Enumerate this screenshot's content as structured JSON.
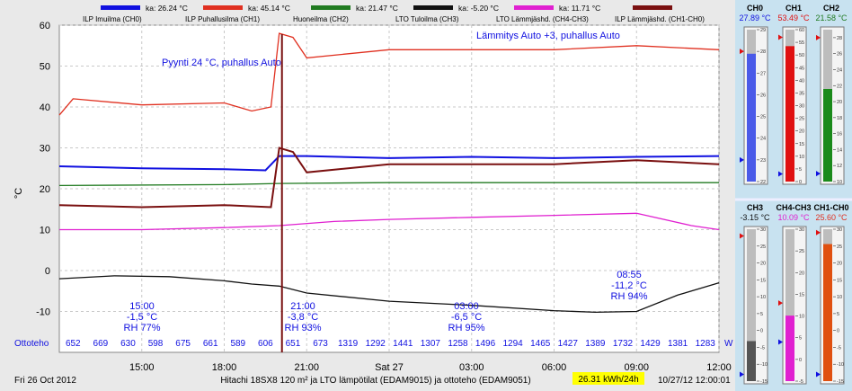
{
  "legend": [
    {
      "ka": "ka: 26.24 °C",
      "name": "ILP Imuilma (CH0)",
      "color": "#1010e0"
    },
    {
      "ka": "ka: 45.14 °C",
      "name": "ILP Puhallusilma (CH1)",
      "color": "#e03020"
    },
    {
      "ka": "ka: 21.47 °C",
      "name": "Huoneilma (CH2)",
      "color": "#207a20"
    },
    {
      "ka": "ka: -5.20 °C",
      "name": "LTO Tuloilma (CH3)",
      "color": "#111111"
    },
    {
      "ka": "ka: 11.71 °C",
      "name": "LTO Lämmjäshd. (CH4-CH3)",
      "color": "#e020d0"
    },
    {
      "ka": "",
      "name": "ILP Lämmjäshd. (CH1-CH0)",
      "color": "#7a1010"
    }
  ],
  "notes": {
    "pyynti": "Pyynti 24 °C, puhallus Auto",
    "lammitys": "Lämmitys Auto +3, puhallus Auto"
  },
  "weather": [
    {
      "time": "15:00",
      "temp": "-1,5 °C",
      "rh": "RH 77%"
    },
    {
      "time": "21:00",
      "temp": "-3,8 °C",
      "rh": "RH 93%"
    },
    {
      "time": "03:00",
      "temp": "-6,5 °C",
      "rh": "RH 95%"
    },
    {
      "time": "08:55",
      "temp": "-11,2 °C",
      "rh": "RH 94%"
    }
  ],
  "ottoteho": {
    "label": "Ottoteho",
    "unit": "W",
    "values": [
      "652",
      "669",
      "630",
      "598",
      "675",
      "661",
      "589",
      "606",
      "651",
      "673",
      "1319",
      "1292",
      "1441",
      "1307",
      "1258",
      "1496",
      "1294",
      "1465",
      "1427",
      "1389",
      "1732",
      "1429",
      "1381",
      "1283"
    ]
  },
  "footer": {
    "date": "Fri 26 Oct 2012",
    "title": "Hitachi 18SX8 120 m² ja LTO lämpötilat (EDAM9015) ja ottoteho (EDAM9051)",
    "energy": "26.31 kWh/24h",
    "timestamp": "10/27/12 12:00:01"
  },
  "gauges": [
    {
      "name": "CH0",
      "value": "27.89 °C",
      "color": "#4a5ae8",
      "valueColor": "#1010e0",
      "min": 22,
      "max": 29,
      "level": 27.89,
      "marker": 28,
      "minmark": 23
    },
    {
      "name": "CH1",
      "value": "53.49 °C",
      "color": "#e01010",
      "valueColor": "#e01010",
      "min": 0,
      "max": 60,
      "level": 53.49,
      "marker": 57,
      "minmark": 3
    },
    {
      "name": "CH2",
      "value": "21.58 °C",
      "color": "#1a8a1a",
      "valueColor": "#207a20",
      "min": 10,
      "max": 29,
      "level": 21.58,
      "marker": 28,
      "minmark": 11
    },
    {
      "name": "CH3",
      "value": "-3.15 °C",
      "color": "#555555",
      "valueColor": "#111111",
      "min": -15,
      "max": 30,
      "level": -3.15,
      "marker": 28,
      "minmark": -13
    },
    {
      "name": "CH4-CH3",
      "value": "10.09 °C",
      "color": "#e020d0",
      "valueColor": "#e020d0",
      "min": -5,
      "max": 30,
      "level": 10.09,
      "marker": 13,
      "minmark": 4
    },
    {
      "name": "CH1-CH0",
      "value": "25.60 °C",
      "color": "#e05010",
      "valueColor": "#e03020",
      "min": -15,
      "max": 30,
      "level": 25.6,
      "marker": 29,
      "minmark": -13
    }
  ],
  "chart_data": {
    "type": "line",
    "title": "Hitachi 18SX8 120 m² ja LTO lämpötilat (EDAM9015) ja ottoteho (EDAM9051)",
    "xlabel": "",
    "ylabel": "°C",
    "ylim": [
      -20,
      60
    ],
    "yticks": [
      60,
      50,
      40,
      30,
      20,
      10,
      0,
      -10
    ],
    "xticks": [
      "15:00",
      "18:00",
      "21:00",
      "Sat 27",
      "03:00",
      "06:00",
      "09:00",
      "12:00"
    ],
    "xrange_hours": [
      0,
      24
    ],
    "series": [
      {
        "name": "ILP Imuilma (CH0)",
        "color": "#1010e0",
        "x": [
          0,
          3,
          6,
          7.5,
          8,
          9,
          12,
          15,
          18,
          21,
          24
        ],
        "y": [
          25.5,
          25,
          24.8,
          24.5,
          28,
          28,
          27.5,
          27.8,
          27.5,
          27.8,
          28
        ]
      },
      {
        "name": "ILP Puhallusilma (CH1)",
        "color": "#e03020",
        "x": [
          0,
          0.5,
          3,
          6,
          7,
          7.7,
          8,
          8.5,
          9,
          12,
          15,
          18,
          21,
          24
        ],
        "y": [
          38,
          42,
          40.5,
          41,
          39,
          40,
          58,
          57,
          52,
          54,
          54,
          54,
          55,
          54
        ]
      },
      {
        "name": "Huoneilma (CH2)",
        "color": "#207a20",
        "x": [
          0,
          6,
          8,
          12,
          18,
          24
        ],
        "y": [
          20.8,
          21,
          21.3,
          21.5,
          21.5,
          21.5
        ]
      },
      {
        "name": "LTO Tuloilma (CH3)",
        "color": "#111111",
        "x": [
          0,
          2,
          4,
          6,
          7,
          8,
          9,
          12,
          15,
          18,
          19.5,
          21,
          22.5,
          24
        ],
        "y": [
          -2,
          -1.3,
          -1.5,
          -2.5,
          -3.3,
          -3.8,
          -5.5,
          -7.5,
          -8.5,
          -9.8,
          -10.2,
          -10,
          -6,
          -3
        ]
      },
      {
        "name": "LTO Lämmjäshd. (CH4-CH3)",
        "color": "#e020d0",
        "x": [
          0,
          3,
          6,
          8,
          10,
          12,
          15,
          18,
          21,
          23,
          24
        ],
        "y": [
          10,
          10,
          10.5,
          11,
          12,
          12.5,
          13,
          13.5,
          14,
          11,
          10
        ]
      },
      {
        "name": "ILP Lämmjäshd. (CH1-CH0)",
        "color": "#7a1010",
        "x": [
          0,
          3,
          6,
          7.7,
          8,
          8.5,
          9,
          12,
          15,
          18,
          21,
          24
        ],
        "y": [
          16,
          15.5,
          16,
          15.5,
          30,
          29,
          24,
          26,
          26,
          26,
          27,
          26
        ]
      }
    ],
    "annotations": [
      "Pyynti 24 °C, puhallus Auto",
      "Lämmitys Auto +3, puhallus Auto"
    ]
  }
}
